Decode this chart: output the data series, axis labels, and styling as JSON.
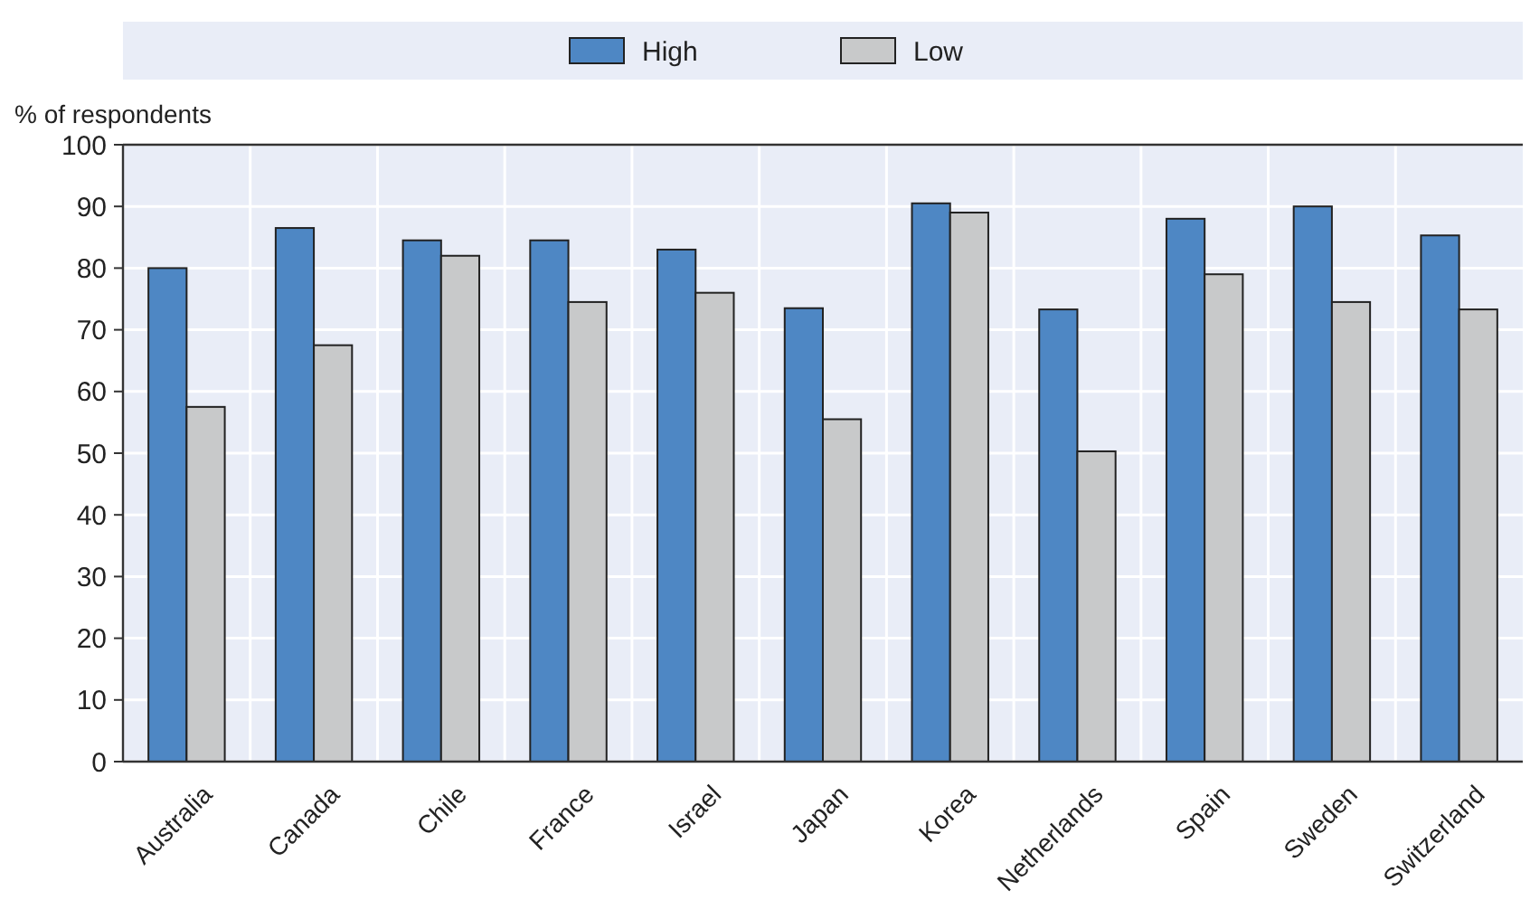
{
  "chart_data": {
    "type": "bar",
    "ylabel": "% of respondents",
    "categories": [
      "Australia",
      "Canada",
      "Chile",
      "France",
      "Israel",
      "Japan",
      "Korea",
      "Netherlands",
      "Spain",
      "Sweden",
      "Switzerland"
    ],
    "series": [
      {
        "name": "High",
        "color": "#4e87c4",
        "values": [
          80,
          86.5,
          84.5,
          84.5,
          83,
          73.5,
          90.5,
          73.3,
          88,
          90,
          85.3
        ]
      },
      {
        "name": "Low",
        "color": "#c8c9ca",
        "values": [
          57.5,
          67.5,
          82,
          74.5,
          76,
          55.5,
          89,
          50.3,
          79,
          74.5,
          73.3
        ]
      }
    ],
    "ylim": [
      0,
      100
    ],
    "yticks": [
      0,
      10,
      20,
      30,
      40,
      50,
      60,
      70,
      80,
      90,
      100
    ],
    "grid": true,
    "legend": "top"
  }
}
